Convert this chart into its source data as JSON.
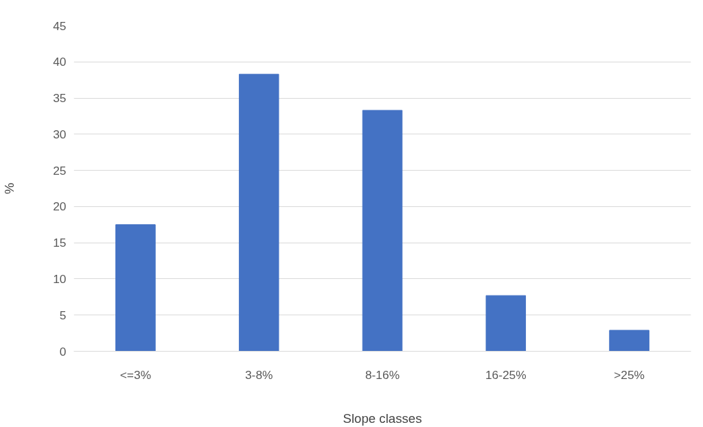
{
  "chart_data": {
    "type": "bar",
    "xlabel": "Slope classes",
    "ylabel": "%",
    "categories": [
      "<=3%",
      "3-8%",
      "8-16%",
      "16-25%",
      ">25%"
    ],
    "values": [
      17.5,
      38.3,
      33.3,
      7.7,
      2.9
    ],
    "color": "#4472c4",
    "ylim": [
      0,
      45
    ],
    "yticks": [
      0,
      5,
      10,
      15,
      20,
      25,
      30,
      35,
      40,
      45
    ],
    "grid": "y"
  }
}
